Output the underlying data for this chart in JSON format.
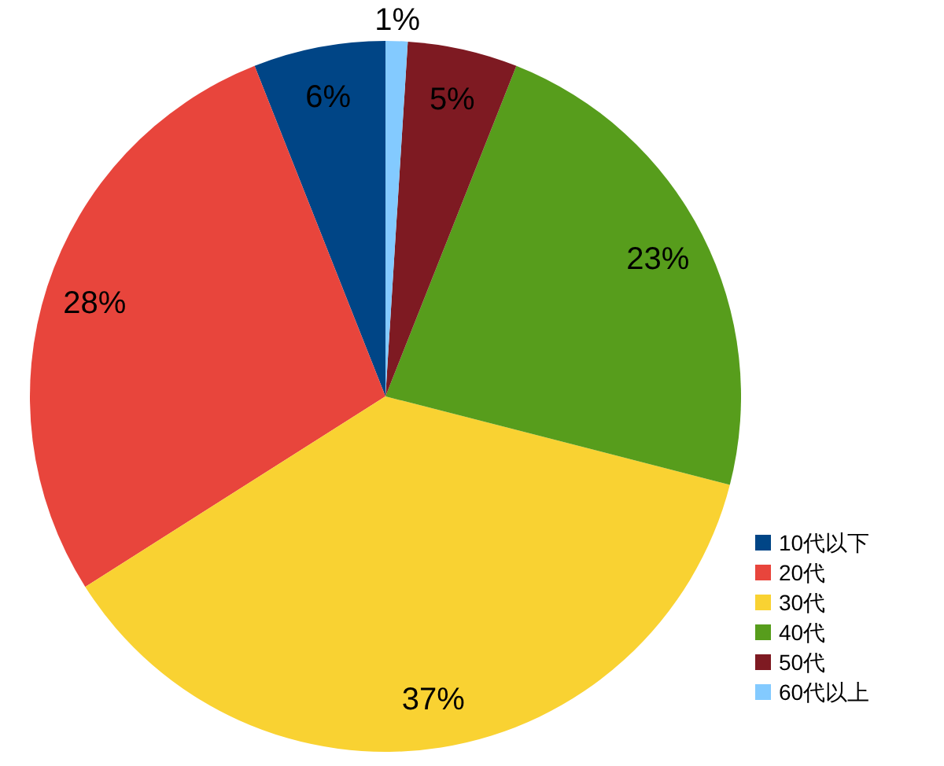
{
  "chart_data": {
    "type": "pie",
    "categories": [
      "10代以下",
      "20代",
      "30代",
      "40代",
      "50代",
      "60代以上"
    ],
    "values": [
      6,
      28,
      37,
      23,
      5,
      1
    ],
    "colors": [
      "#004586",
      "#e8453c",
      "#f9d232",
      "#579d1c",
      "#7e1a22",
      "#83caff"
    ],
    "value_labels": [
      "6%",
      "28%",
      "37%",
      "23%",
      "5%",
      "1%"
    ],
    "legend": "bottom right"
  }
}
